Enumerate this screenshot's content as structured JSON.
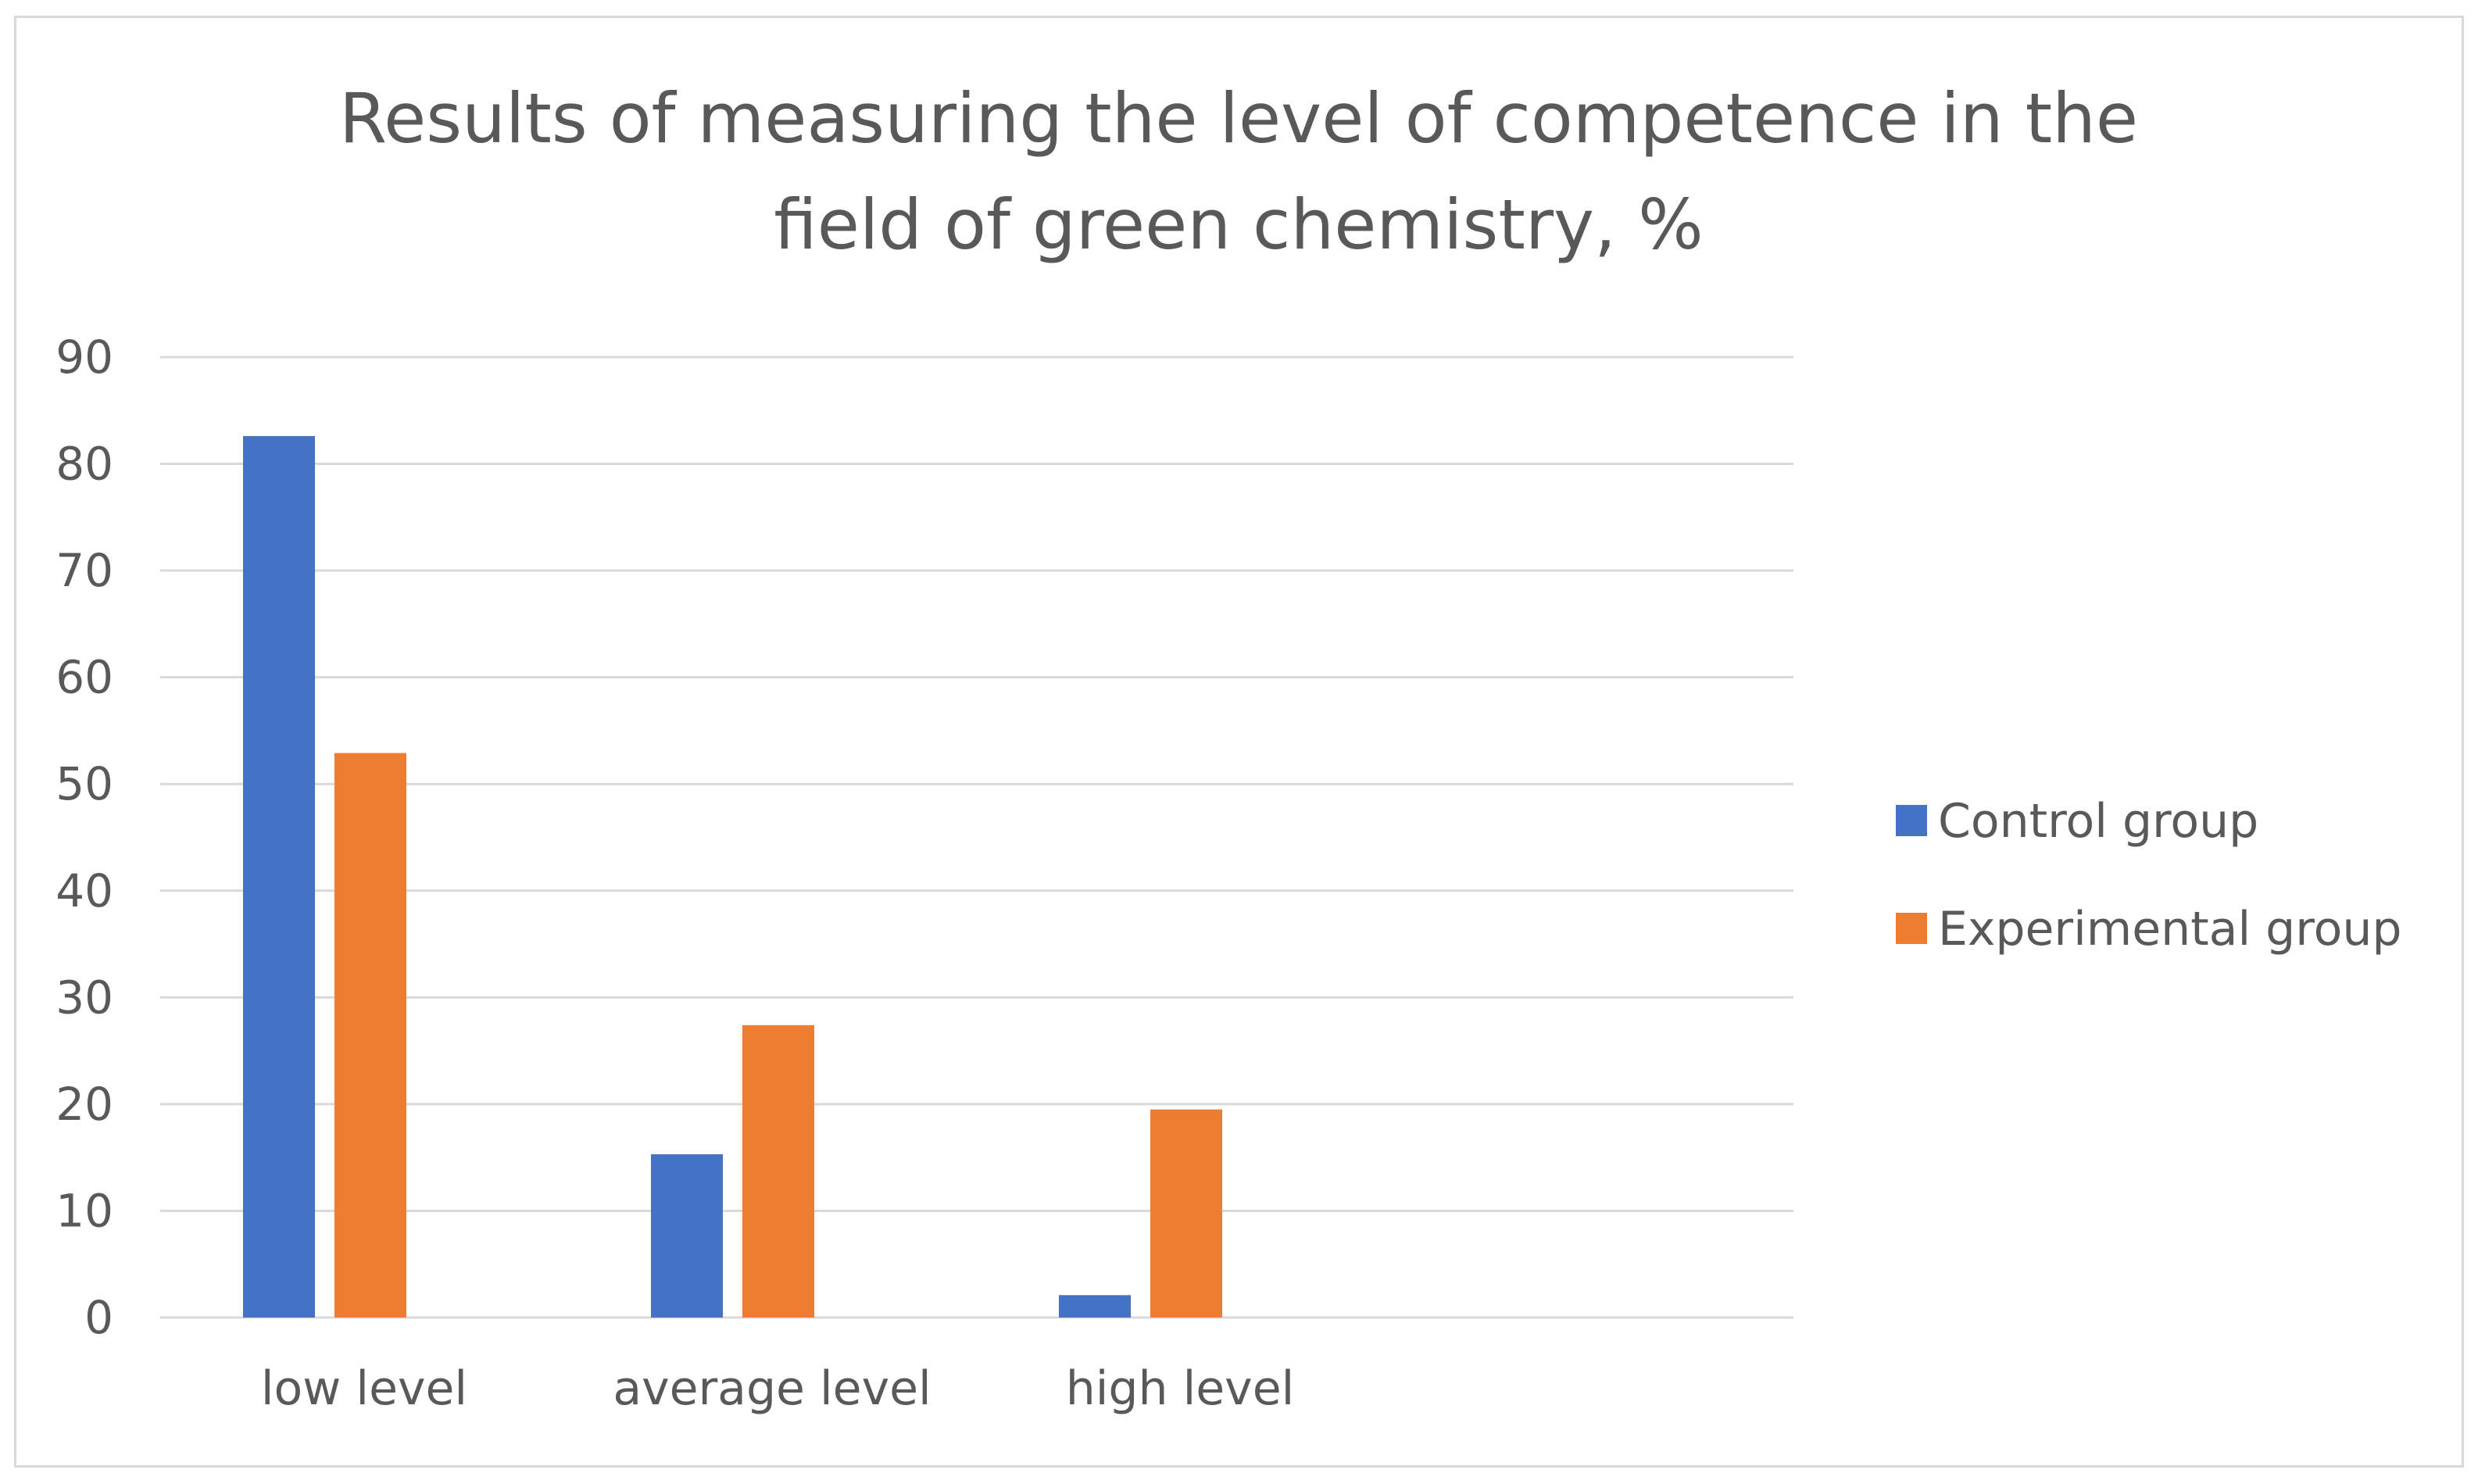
{
  "chart_data": {
    "type": "bar",
    "title": "Results of measuring the level of competence in the field of green chemistry, %",
    "title_lines": [
      "Results of measuring the level of competence in the",
      "field of green chemistry, %"
    ],
    "categories": [
      "low level",
      "average level",
      "high level"
    ],
    "series": [
      {
        "name": "Control group",
        "color": "#4472c4",
        "values": [
          82.6,
          15.3,
          2.1
        ]
      },
      {
        "name": "Experimental group",
        "color": "#ed7d31",
        "values": [
          52.9,
          27.4,
          19.5
        ]
      }
    ],
    "xlabel": "",
    "ylabel": "",
    "ylim": [
      0,
      90
    ],
    "yticks": [
      "0",
      "10",
      "20",
      "30",
      "40",
      "50",
      "60",
      "70",
      "80",
      "90"
    ],
    "grid": true,
    "legend_position": "right"
  }
}
